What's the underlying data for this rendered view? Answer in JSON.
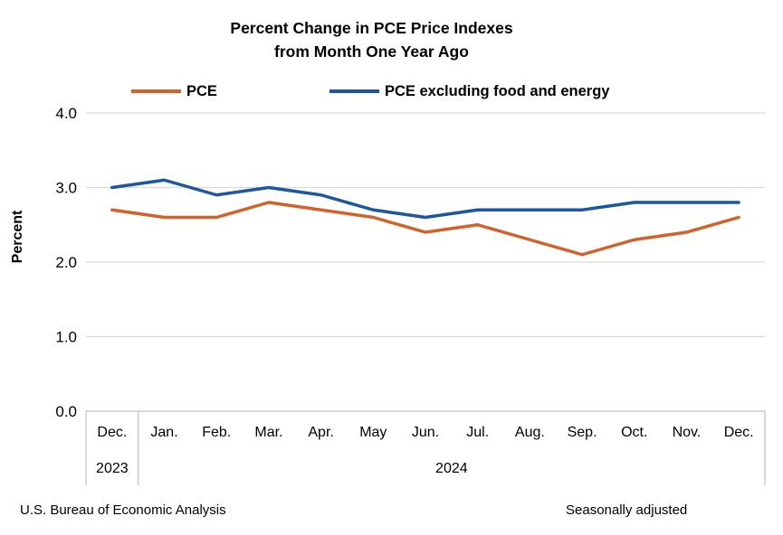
{
  "title": {
    "line1": "Percent Change in PCE Price Indexes",
    "line2": "from Month One Year Ago"
  },
  "legend": [
    {
      "label": "PCE",
      "color": "#D2622A"
    },
    {
      "label": "PCE excluding food and energy",
      "color": "#1C57A0"
    }
  ],
  "footer": {
    "left": "U.S. Bureau of Economic Analysis",
    "right": "Seasonally adjusted"
  },
  "chart_data": {
    "type": "line",
    "categories": [
      "Dec.",
      "Jan.",
      "Feb.",
      "Mar.",
      "Apr.",
      "May",
      "Jun.",
      "Jul.",
      "Aug.",
      "Sep.",
      "Oct.",
      "Nov.",
      "Dec."
    ],
    "year_labels": [
      {
        "label": "2023",
        "start": 0,
        "end": 0
      },
      {
        "label": "2024",
        "start": 1,
        "end": 12
      }
    ],
    "series": [
      {
        "name": "PCE",
        "color": "#D2622A",
        "values": [
          2.7,
          2.6,
          2.6,
          2.8,
          2.7,
          2.6,
          2.4,
          2.5,
          2.3,
          2.1,
          2.3,
          2.4,
          2.6
        ]
      },
      {
        "name": "PCE excluding food and energy",
        "color": "#1C57A0",
        "values": [
          3.0,
          3.1,
          2.9,
          3.0,
          2.9,
          2.7,
          2.6,
          2.7,
          2.7,
          2.7,
          2.8,
          2.8,
          2.8
        ]
      }
    ],
    "title": "Percent Change in PCE Price Indexes from Month One Year Ago",
    "xlabel": "",
    "ylabel": "Percent",
    "ylim": [
      0,
      4
    ],
    "yticks": [
      0,
      1,
      2,
      3,
      4
    ],
    "ytick_labels": [
      "0.0",
      "1.0",
      "2.0",
      "3.0",
      "4.0"
    ],
    "grid": "horizontal",
    "legend_position": "top",
    "annotations": [
      "Seasonally adjusted"
    ]
  }
}
